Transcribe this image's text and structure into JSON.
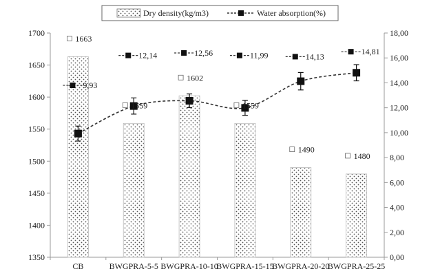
{
  "chart_data": {
    "type": "bar",
    "categories": [
      "CB",
      "BWGPRA-5-5",
      "BWGPRA-10-10",
      "BWGPRA-15-15",
      "BWGPRA-20-20",
      "BWGPRA-25-25"
    ],
    "series": [
      {
        "name": "Dry density(kg/m3)",
        "type": "bar",
        "axis": "left",
        "values": [
          1663,
          1559,
          1602,
          1559,
          1490,
          1480
        ],
        "labels": [
          "1663",
          "1559",
          "1602",
          "1559",
          "1490",
          "1480"
        ]
      },
      {
        "name": "Water absorption(%)",
        "type": "line",
        "axis": "right",
        "values": [
          9.93,
          12.14,
          12.56,
          11.99,
          14.13,
          14.81
        ],
        "labels": [
          "9,93",
          "12,14",
          "12,56",
          "11,99",
          "14,13",
          "14,81"
        ],
        "error": [
          0.6,
          0.65,
          0.55,
          0.6,
          0.7,
          0.65
        ]
      }
    ],
    "ylim_left": [
      1350,
      1700
    ],
    "yticks_left": [
      "1350",
      "1400",
      "1450",
      "1500",
      "1550",
      "1600",
      "1650",
      "1700"
    ],
    "ylim_right": [
      0,
      18
    ],
    "yticks_right": [
      "0,00",
      "2,00",
      "4,00",
      "6,00",
      "8,00",
      "10,00",
      "12,00",
      "14,00",
      "16,00",
      "18,00"
    ],
    "legend_position": "top-center",
    "grid": false,
    "colors": {
      "bar_fill": "#ffffff",
      "bar_dots": "#555555",
      "line": "#333333",
      "marker": "#111111",
      "axis": "#999999"
    }
  }
}
